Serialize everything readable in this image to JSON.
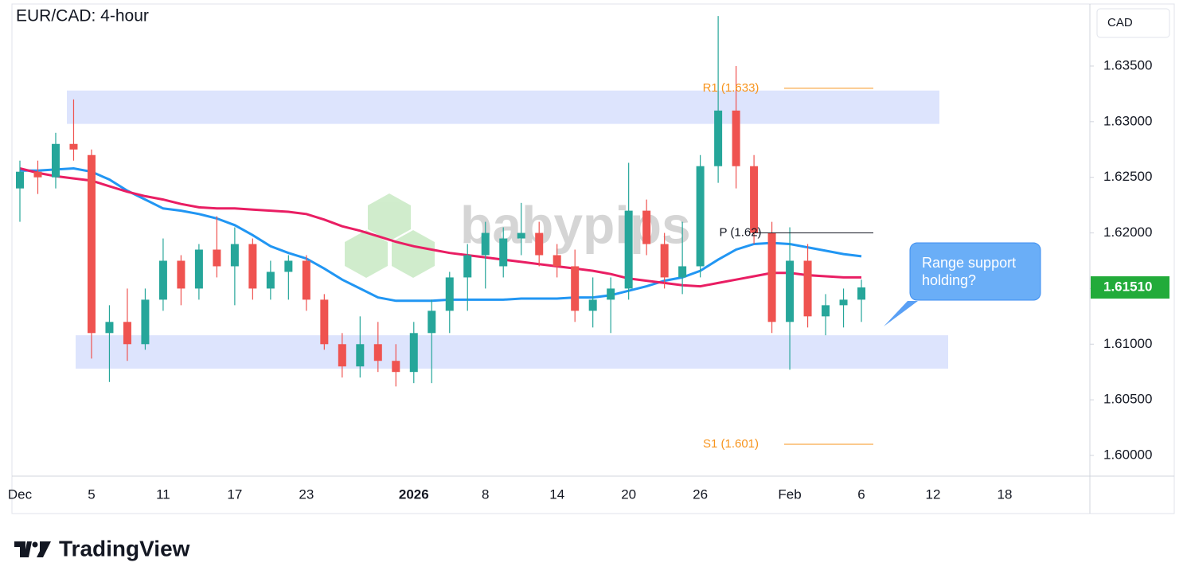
{
  "chart_data": {
    "type": "candlestick",
    "title": "EUR/CAD: 4-hour",
    "currency": "CAD",
    "watermark": "babypips",
    "brand": "TradingView",
    "categories": [
      "Dec",
      null,
      null,
      null,
      "5",
      null,
      null,
      null,
      "11",
      null,
      null,
      null,
      "17",
      null,
      null,
      null,
      "23",
      null,
      null,
      null,
      null,
      null,
      "2026",
      null,
      null,
      null,
      "8",
      null,
      null,
      null,
      "14",
      null,
      null,
      null,
      "20",
      null,
      null,
      null,
      "26",
      null,
      null,
      null,
      null,
      "Feb",
      null,
      null,
      null,
      "6",
      null,
      null,
      null,
      "12",
      null,
      null,
      null,
      "18"
    ],
    "candles": {
      "up_color": "#26a69a",
      "down_color": "#ef5350",
      "open": [
        1.624,
        1.6255,
        1.625,
        1.628,
        1.627,
        1.611,
        1.612,
        1.61,
        1.614,
        1.6175,
        1.615,
        1.6185,
        1.617,
        1.619,
        1.615,
        1.6165,
        1.6175,
        1.614,
        1.61,
        1.608,
        1.61,
        1.6085,
        1.6075,
        1.611,
        1.613,
        1.616,
        1.618,
        1.617,
        1.6195,
        1.62,
        1.618,
        1.617,
        1.613,
        1.614,
        1.615,
        1.622,
        1.619,
        1.616,
        1.617,
        1.626,
        1.631,
        1.626,
        1.62,
        1.612,
        1.6175,
        1.6125,
        1.6135,
        1.614,
        null,
        null,
        null,
        null,
        null,
        null,
        null,
        null
      ],
      "high": [
        1.6265,
        1.6265,
        1.629,
        1.632,
        1.6275,
        1.6135,
        1.615,
        1.615,
        1.6195,
        1.618,
        1.619,
        1.6215,
        1.6205,
        1.6195,
        1.6175,
        1.618,
        1.618,
        1.6145,
        1.611,
        1.6125,
        1.612,
        1.61,
        1.612,
        1.614,
        1.6165,
        1.619,
        1.621,
        1.6205,
        1.6227,
        1.621,
        1.619,
        1.6185,
        1.616,
        1.616,
        1.6263,
        1.623,
        1.62,
        1.621,
        1.627,
        1.6395,
        1.635,
        1.627,
        1.621,
        1.6205,
        1.619,
        1.6145,
        1.615,
        1.6158,
        null,
        null,
        null,
        null,
        null,
        null,
        null,
        null
      ],
      "low": [
        1.621,
        1.6235,
        1.624,
        1.6265,
        1.6087,
        1.6066,
        1.6085,
        1.6095,
        1.613,
        1.6135,
        1.614,
        1.616,
        1.6135,
        1.614,
        1.614,
        1.614,
        1.613,
        1.6095,
        1.607,
        1.607,
        1.6075,
        1.6062,
        1.6065,
        1.6065,
        1.611,
        1.613,
        1.615,
        1.616,
        1.618,
        1.617,
        1.616,
        1.612,
        1.6115,
        1.611,
        1.614,
        1.618,
        1.615,
        1.6145,
        1.616,
        1.6245,
        1.624,
        1.619,
        1.611,
        1.6077,
        1.6115,
        1.6108,
        1.6115,
        1.612,
        null,
        null,
        null,
        null,
        null,
        null,
        null,
        null
      ],
      "close": [
        1.6255,
        1.625,
        1.628,
        1.6275,
        1.611,
        1.612,
        1.61,
        1.614,
        1.6175,
        1.615,
        1.6185,
        1.617,
        1.619,
        1.615,
        1.6165,
        1.6175,
        1.614,
        1.61,
        1.608,
        1.61,
        1.6085,
        1.6075,
        1.611,
        1.613,
        1.616,
        1.618,
        1.62,
        1.6195,
        1.62,
        1.618,
        1.617,
        1.613,
        1.614,
        1.615,
        1.622,
        1.619,
        1.616,
        1.617,
        1.626,
        1.631,
        1.626,
        1.62,
        1.612,
        1.6175,
        1.6125,
        1.6135,
        1.614,
        1.6151,
        null,
        null,
        null,
        null,
        null,
        null,
        null,
        null
      ]
    },
    "lines": [
      {
        "color": "#2196f3",
        "values": [
          1.6256,
          1.6256,
          1.6257,
          1.6258,
          1.6255,
          1.6248,
          1.6238,
          1.623,
          1.6222,
          1.622,
          1.6217,
          1.6213,
          1.6207,
          1.6198,
          1.6188,
          1.6182,
          1.6177,
          1.6168,
          1.6158,
          1.615,
          1.6142,
          1.6139,
          1.6139,
          1.6139,
          1.614,
          1.614,
          1.614,
          1.614,
          1.6141,
          1.6141,
          1.6141,
          1.6142,
          1.6142,
          1.6144,
          1.6148,
          1.6152,
          1.6157,
          1.616,
          1.6166,
          1.6176,
          1.6185,
          1.619,
          1.6191,
          1.619,
          1.6187,
          1.6184,
          1.6181,
          1.6179,
          null,
          null,
          null,
          null,
          null,
          null,
          null,
          null
        ]
      },
      {
        "color": "#e91e63",
        "values": [
          1.6258,
          1.6254,
          1.6251,
          1.6249,
          1.6247,
          1.6242,
          1.6237,
          1.6233,
          1.623,
          1.6226,
          1.6223,
          1.6222,
          1.6222,
          1.6221,
          1.622,
          1.6219,
          1.6217,
          1.6212,
          1.6206,
          1.6202,
          1.6197,
          1.6192,
          1.6188,
          1.6185,
          1.6182,
          1.618,
          1.6178,
          1.6176,
          1.6174,
          1.6172,
          1.617,
          1.6168,
          1.6166,
          1.6163,
          1.6159,
          1.6157,
          1.6155,
          1.6153,
          1.6152,
          1.6155,
          1.6158,
          1.6161,
          1.6164,
          1.6164,
          1.6162,
          1.6161,
          1.616,
          1.616,
          null,
          null,
          null,
          null,
          null,
          null,
          null,
          null
        ]
      }
    ],
    "zones": [
      {
        "low": 1.6298,
        "high": 1.6328,
        "color": "#dde4fd"
      },
      {
        "low": 1.6078,
        "high": 1.6108,
        "color": "#dde4fd"
      }
    ],
    "levels": [
      {
        "label": "R1 (1.633)",
        "value": 1.633,
        "color": "#f7941d"
      },
      {
        "label": "P (1.62)",
        "value": 1.62,
        "color": "#131722"
      },
      {
        "label": "S1 (1.601)",
        "value": 1.601,
        "color": "#f7941d"
      }
    ],
    "last_price": {
      "value": 1.6151,
      "label": "1.61510",
      "color": "#22ab3a"
    },
    "callout": "Range support holding?",
    "ylim": [
      1.59821,
      1.64058
    ],
    "yticks": [
      {
        "value": 1.6,
        "label": "1.60000"
      },
      {
        "value": 1.605,
        "label": "1.60500"
      },
      {
        "value": 1.61,
        "label": "1.61000"
      },
      {
        "value": 1.615,
        "label": "1.61500"
      },
      {
        "value": 1.62,
        "label": "1.62000"
      },
      {
        "value": 1.625,
        "label": "1.62500"
      },
      {
        "value": 1.63,
        "label": "1.63000"
      },
      {
        "value": 1.635,
        "label": "1.63500"
      }
    ]
  }
}
